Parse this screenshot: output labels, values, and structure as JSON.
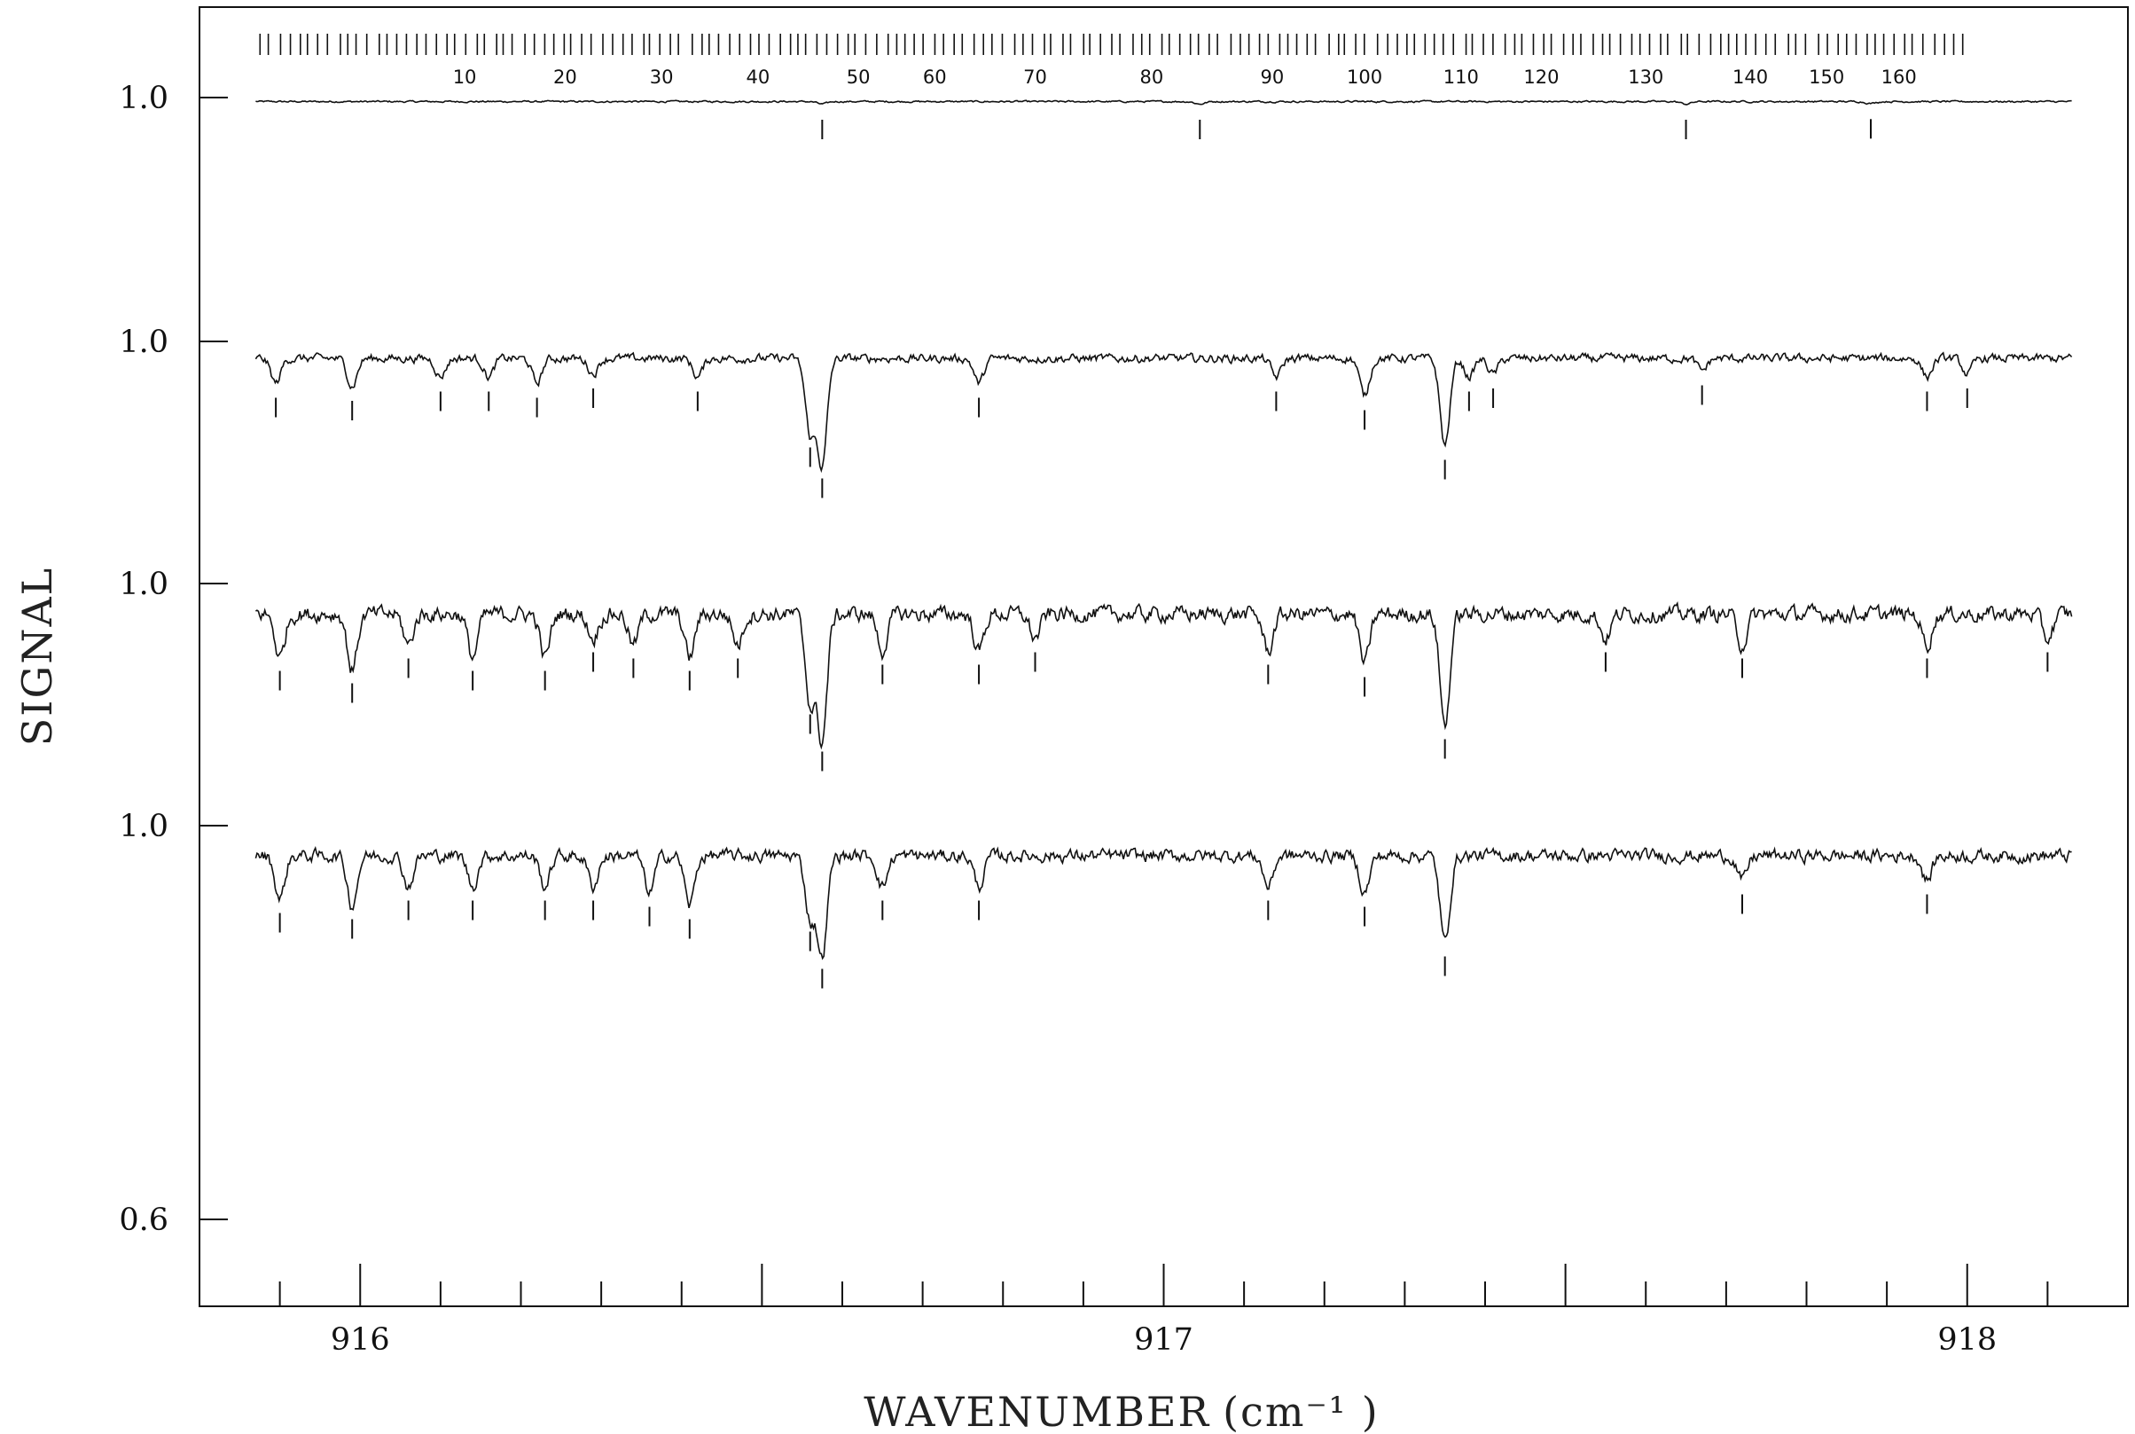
{
  "chart_data": {
    "type": "line",
    "title": "",
    "xlabel": "WAVENUMBER",
    "xlabel_unit": "(cm⁻¹ )",
    "ylabel": "SIGNAL",
    "xlim": [
      915.8,
      918.2
    ],
    "x_ticks": [
      {
        "value": 916,
        "label": "916"
      },
      {
        "value": 917,
        "label": "917"
      },
      {
        "value": 918,
        "label": "918"
      }
    ],
    "x_minor_step": 0.1,
    "y_tick_labels": [
      "1.0",
      "1.0",
      "1.0",
      "1.0",
      "0.6"
    ],
    "grid": false,
    "legend": "none",
    "x_start": 915.87,
    "x_end": 918.13,
    "series": [
      {
        "baseline": 0.994,
        "features": [
          {
            "x": 916.575,
            "depth": 0.004
          },
          {
            "x": 917.045,
            "depth": 0.004
          },
          {
            "x": 917.65,
            "depth": 0.004
          },
          {
            "x": 917.88,
            "depth": 0.003
          }
        ]
      },
      {
        "baseline": 0.975,
        "features": [
          {
            "x": 915.895,
            "depth": 0.04
          },
          {
            "x": 915.99,
            "depth": 0.045
          },
          {
            "x": 916.1,
            "depth": 0.03
          },
          {
            "x": 916.16,
            "depth": 0.03
          },
          {
            "x": 916.22,
            "depth": 0.04
          },
          {
            "x": 916.29,
            "depth": 0.025
          },
          {
            "x": 916.42,
            "depth": 0.03
          },
          {
            "x": 916.56,
            "depth": 0.12
          },
          {
            "x": 916.575,
            "depth": 0.17
          },
          {
            "x": 916.77,
            "depth": 0.04
          },
          {
            "x": 917.14,
            "depth": 0.03
          },
          {
            "x": 917.25,
            "depth": 0.06
          },
          {
            "x": 917.35,
            "depth": 0.14
          },
          {
            "x": 917.38,
            "depth": 0.03
          },
          {
            "x": 917.41,
            "depth": 0.025
          },
          {
            "x": 917.67,
            "depth": 0.02
          },
          {
            "x": 917.95,
            "depth": 0.03
          },
          {
            "x": 918.0,
            "depth": 0.025
          }
        ]
      },
      {
        "baseline": 0.955,
        "features": [
          {
            "x": 915.9,
            "depth": 0.07
          },
          {
            "x": 915.99,
            "depth": 0.09
          },
          {
            "x": 916.06,
            "depth": 0.05
          },
          {
            "x": 916.14,
            "depth": 0.07
          },
          {
            "x": 916.23,
            "depth": 0.07
          },
          {
            "x": 916.29,
            "depth": 0.04
          },
          {
            "x": 916.34,
            "depth": 0.05
          },
          {
            "x": 916.41,
            "depth": 0.07
          },
          {
            "x": 916.47,
            "depth": 0.05
          },
          {
            "x": 916.56,
            "depth": 0.14
          },
          {
            "x": 916.575,
            "depth": 0.2
          },
          {
            "x": 916.65,
            "depth": 0.06
          },
          {
            "x": 916.77,
            "depth": 0.06
          },
          {
            "x": 916.84,
            "depth": 0.04
          },
          {
            "x": 917.13,
            "depth": 0.06
          },
          {
            "x": 917.25,
            "depth": 0.08
          },
          {
            "x": 917.35,
            "depth": 0.18
          },
          {
            "x": 917.55,
            "depth": 0.04
          },
          {
            "x": 917.72,
            "depth": 0.05
          },
          {
            "x": 917.95,
            "depth": 0.05
          },
          {
            "x": 918.1,
            "depth": 0.04
          }
        ]
      },
      {
        "baseline": 0.955,
        "features": [
          {
            "x": 915.9,
            "depth": 0.07
          },
          {
            "x": 915.99,
            "depth": 0.08
          },
          {
            "x": 916.06,
            "depth": 0.05
          },
          {
            "x": 916.14,
            "depth": 0.05
          },
          {
            "x": 916.23,
            "depth": 0.05
          },
          {
            "x": 916.29,
            "depth": 0.05
          },
          {
            "x": 916.36,
            "depth": 0.06
          },
          {
            "x": 916.41,
            "depth": 0.08
          },
          {
            "x": 916.56,
            "depth": 0.1
          },
          {
            "x": 916.575,
            "depth": 0.16
          },
          {
            "x": 916.65,
            "depth": 0.05
          },
          {
            "x": 916.77,
            "depth": 0.05
          },
          {
            "x": 917.13,
            "depth": 0.05
          },
          {
            "x": 917.25,
            "depth": 0.06
          },
          {
            "x": 917.35,
            "depth": 0.14
          },
          {
            "x": 917.72,
            "depth": 0.04
          },
          {
            "x": 917.95,
            "depth": 0.04
          }
        ]
      }
    ],
    "assignment_labels": [
      {
        "value": "10",
        "x": 916.13
      },
      {
        "value": "20",
        "x": 916.255
      },
      {
        "value": "30",
        "x": 916.375
      },
      {
        "value": "40",
        "x": 916.495
      },
      {
        "value": "50",
        "x": 916.62
      },
      {
        "value": "60",
        "x": 916.715
      },
      {
        "value": "70",
        "x": 916.84
      },
      {
        "value": "80",
        "x": 916.985
      },
      {
        "value": "90",
        "x": 917.135
      },
      {
        "value": "100",
        "x": 917.25
      },
      {
        "value": "110",
        "x": 917.37
      },
      {
        "value": "120",
        "x": 917.47
      },
      {
        "value": "130",
        "x": 917.6
      },
      {
        "value": "140",
        "x": 917.73
      },
      {
        "value": "150",
        "x": 917.825
      },
      {
        "value": "160",
        "x": 917.915
      }
    ]
  }
}
